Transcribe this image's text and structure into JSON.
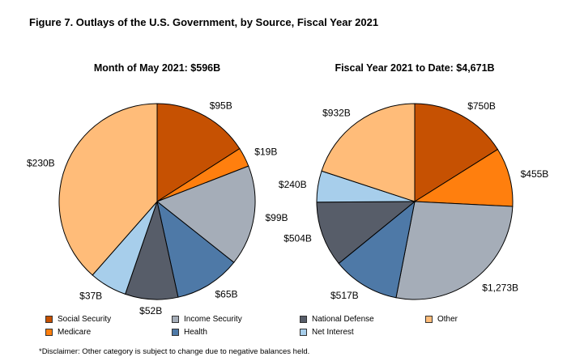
{
  "figure_title": "Figure 7. Outlays of the U.S. Government, by Source, Fiscal Year 2021",
  "disclaimer": "*Disclaimer: Other category is subject to change due to negative balances held.",
  "legend": {
    "social_security": "Social Security",
    "medicare": "Medicare",
    "income_security": "Income Security",
    "health": "Health",
    "national_defense": "National Defense",
    "net_interest": "Net Interest",
    "other": "Other"
  },
  "colors": {
    "social_security": "#C65102",
    "medicare": "#FF7F0E",
    "income_security": "#A5ADB8",
    "health": "#4E79A7",
    "national_defense": "#575D69",
    "net_interest": "#A7CEEB",
    "other": "#FFBC79"
  },
  "chart_data": [
    {
      "type": "pie",
      "title": "Month of May 2021: $596B",
      "slices": [
        {
          "key": "social_security",
          "label": "$95B",
          "value": 95
        },
        {
          "key": "medicare",
          "label": "$19B",
          "value": 19
        },
        {
          "key": "income_security",
          "label": "$99B",
          "value": 99
        },
        {
          "key": "health",
          "label": "$65B",
          "value": 65
        },
        {
          "key": "national_defense",
          "label": "$52B",
          "value": 52
        },
        {
          "key": "net_interest",
          "label": "$37B",
          "value": 37
        },
        {
          "key": "other",
          "label": "$230B",
          "value": 230
        }
      ]
    },
    {
      "type": "pie",
      "title": "Fiscal Year 2021 to Date: $4,671B",
      "slices": [
        {
          "key": "social_security",
          "label": "$750B",
          "value": 750
        },
        {
          "key": "medicare",
          "label": "$455B",
          "value": 455
        },
        {
          "key": "income_security",
          "label": "$1,273B",
          "value": 1273
        },
        {
          "key": "health",
          "label": "$517B",
          "value": 517
        },
        {
          "key": "national_defense",
          "label": "$504B",
          "value": 504
        },
        {
          "key": "net_interest",
          "label": "$240B",
          "value": 240
        },
        {
          "key": "other",
          "label": "$932B",
          "value": 932
        }
      ]
    }
  ]
}
